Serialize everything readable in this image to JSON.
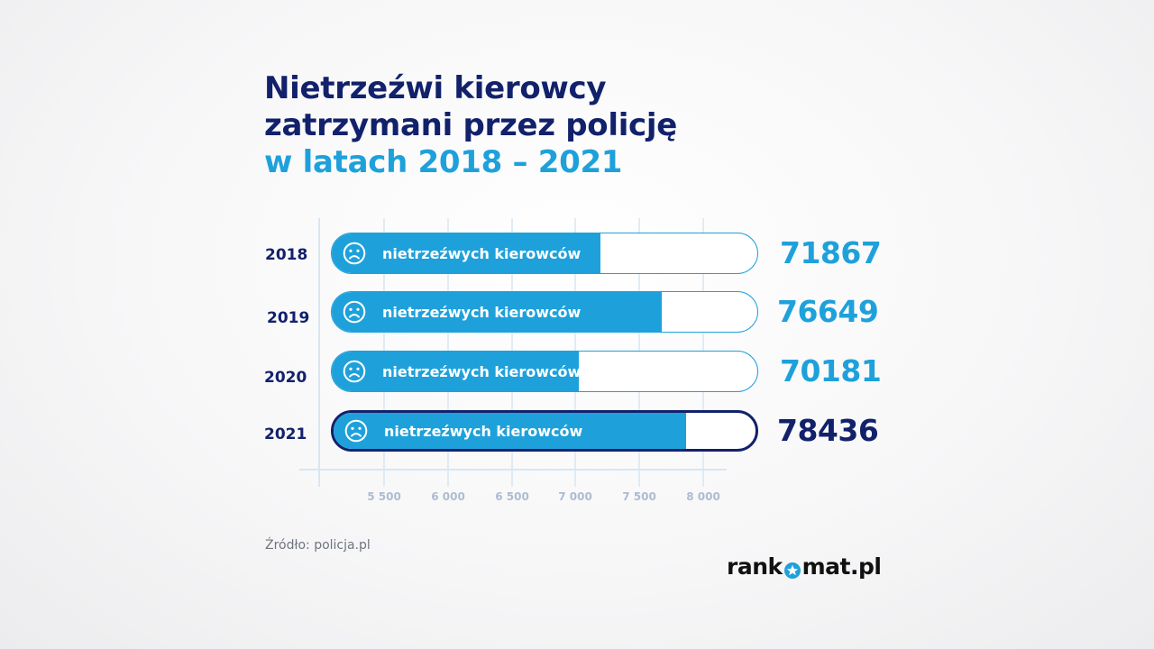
{
  "title": {
    "line1": "Nietrzeźwi kierowcy",
    "line2": "zatrzymani przez policję",
    "line3": "w latach 2018 – 2021"
  },
  "colors": {
    "navy": "#12216b",
    "blue": "#1ea1db",
    "grid": "#d8e6f2"
  },
  "chart_data": {
    "type": "bar",
    "orientation": "horizontal",
    "bar_label": "nietrzeźwych kierowców",
    "categories": [
      "2018",
      "2019",
      "2020",
      "2021"
    ],
    "values": [
      71867,
      76649,
      70181,
      78436
    ],
    "value_labels": [
      "71867",
      "76649",
      "70181",
      "78436"
    ],
    "highlight": "2021",
    "x_ticks": [
      5500,
      6000,
      6500,
      7000,
      7500,
      8000
    ],
    "x_tick_labels": [
      "5 500",
      "6 000",
      "6 500",
      "7 000",
      "7 500",
      "8 000"
    ],
    "xlim": [
      5000,
      8500
    ],
    "grid": true
  },
  "source": "Źródło: policja.pl",
  "logo": {
    "left": "rank",
    "right": "mat.pl"
  }
}
